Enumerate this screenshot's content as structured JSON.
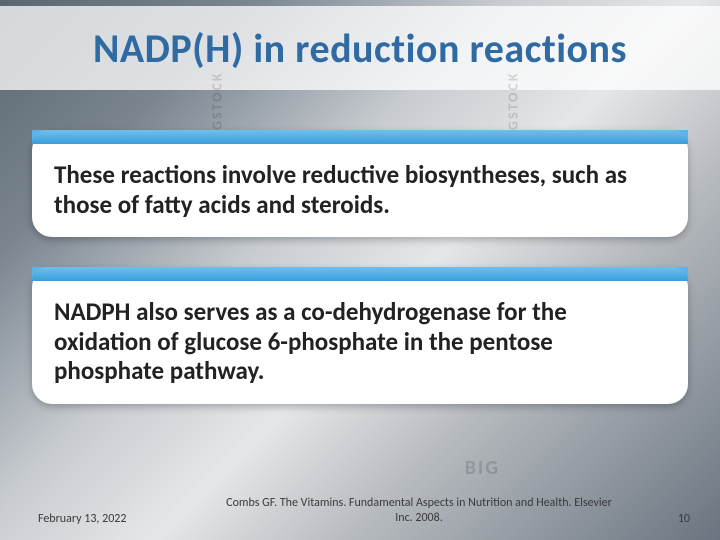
{
  "title": "NADP(H) in reduction reactions",
  "cards": [
    {
      "text": "These reactions involve reductive biosyntheses, such as those of fatty acids and steroids."
    },
    {
      "text": "NADPH also serves as a co-dehydrogenase for the oxidation of glucose 6-phosphate in the pentose phosphate pathway."
    }
  ],
  "footer": {
    "date": "February 13, 2022",
    "citation": "Combs GF. The Vitamins. Fundamental Aspects in Nutrition and Health. Elsevier Inc. 2008.",
    "page": "10"
  },
  "watermarks": {
    "w1": "BIGSTOCK",
    "w2": "BIGSTOCK",
    "w3": "BIG",
    "w4": "STOCK"
  },
  "colors": {
    "title_color": "#2f6aa2",
    "card_body_color": "#222222",
    "card_header_gradient_top": "#6fc0ec",
    "card_header_gradient_bottom": "#3a9ddb",
    "title_band_bg": "rgba(255,255,255,0.75)"
  },
  "typography": {
    "title_fontsize_pt": 30,
    "card_text_fontsize_pt": 19,
    "footer_fontsize_pt": 9,
    "font_family": "Calibri"
  }
}
